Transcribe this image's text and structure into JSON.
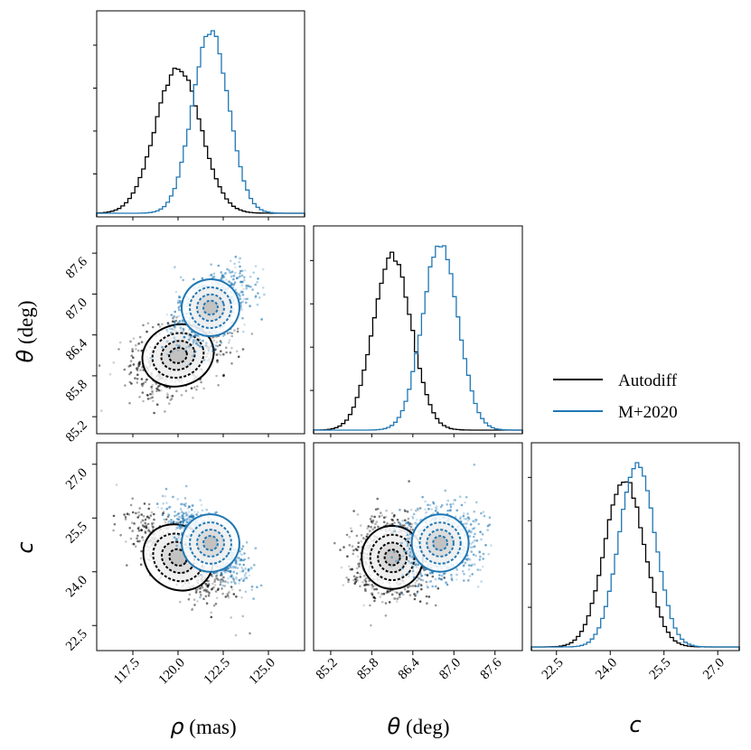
{
  "colors": {
    "autodiff": "#000000",
    "m2020": "#1f77b4"
  },
  "legend": {
    "location": "right, beside the theta histogram",
    "entries": [
      "Autodiff",
      "M+2020"
    ]
  },
  "axis_labels": {
    "rho": {
      "var": "ρ",
      "unit": " (mas)"
    },
    "theta": {
      "var": "θ",
      "unit": " (deg)"
    },
    "c": {
      "var": "c",
      "unit": ""
    }
  },
  "chart_data": [
    {
      "type": "histogram",
      "panel": "rho",
      "xlim": [
        115.5,
        127.0
      ],
      "xticks": [
        "117.5",
        "120.0",
        "122.5",
        "125.0"
      ],
      "series": [
        {
          "name": "Autodiff",
          "mean": 120.0,
          "std": 1.25
        },
        {
          "name": "M+2020",
          "mean": 121.8,
          "std": 1.0
        }
      ]
    },
    {
      "type": "scatter",
      "panel": "rho-theta",
      "xlim": [
        115.5,
        127.0
      ],
      "ylim": [
        84.95,
        88.0
      ],
      "yticks": [
        "85.2",
        "85.8",
        "86.4",
        "87.0",
        "87.6"
      ],
      "series": [
        {
          "name": "Autodiff",
          "center": [
            120.0,
            86.1
          ],
          "spread": [
            1.25,
            0.28
          ]
        },
        {
          "name": "M+2020",
          "center": [
            121.8,
            86.8
          ],
          "spread": [
            1.0,
            0.26
          ]
        }
      ]
    },
    {
      "type": "histogram",
      "panel": "theta",
      "xlim": [
        84.95,
        88.0
      ],
      "xticks": [
        "85.2",
        "85.8",
        "86.4",
        "87.0",
        "87.6"
      ],
      "series": [
        {
          "name": "Autodiff",
          "mean": 86.1,
          "std": 0.28
        },
        {
          "name": "M+2020",
          "mean": 86.8,
          "std": 0.26
        }
      ]
    },
    {
      "type": "scatter",
      "panel": "rho-c",
      "xlim": [
        115.5,
        127.0
      ],
      "ylim": [
        21.8,
        27.6
      ],
      "yticks": [
        "22.5",
        "24.0",
        "25.5",
        "27.0"
      ],
      "series": [
        {
          "name": "Autodiff",
          "center": [
            120.0,
            24.4
          ],
          "spread": [
            1.25,
            0.55
          ]
        },
        {
          "name": "M+2020",
          "center": [
            121.8,
            24.8
          ],
          "spread": [
            1.0,
            0.5
          ]
        }
      ]
    },
    {
      "type": "scatter",
      "panel": "theta-c",
      "xlim": [
        84.95,
        88.0
      ],
      "ylim": [
        21.8,
        27.6
      ],
      "series": [
        {
          "name": "Autodiff",
          "center": [
            86.1,
            24.4
          ],
          "spread": [
            0.28,
            0.55
          ]
        },
        {
          "name": "M+2020",
          "center": [
            86.8,
            24.8
          ],
          "spread": [
            0.26,
            0.5
          ]
        }
      ]
    },
    {
      "type": "histogram",
      "panel": "c",
      "xlim": [
        21.8,
        27.6
      ],
      "xticks": [
        "22.5",
        "24.0",
        "25.5",
        "27.0"
      ],
      "series": [
        {
          "name": "Autodiff",
          "mean": 24.4,
          "std": 0.55
        },
        {
          "name": "M+2020",
          "mean": 24.75,
          "std": 0.5
        }
      ]
    }
  ]
}
